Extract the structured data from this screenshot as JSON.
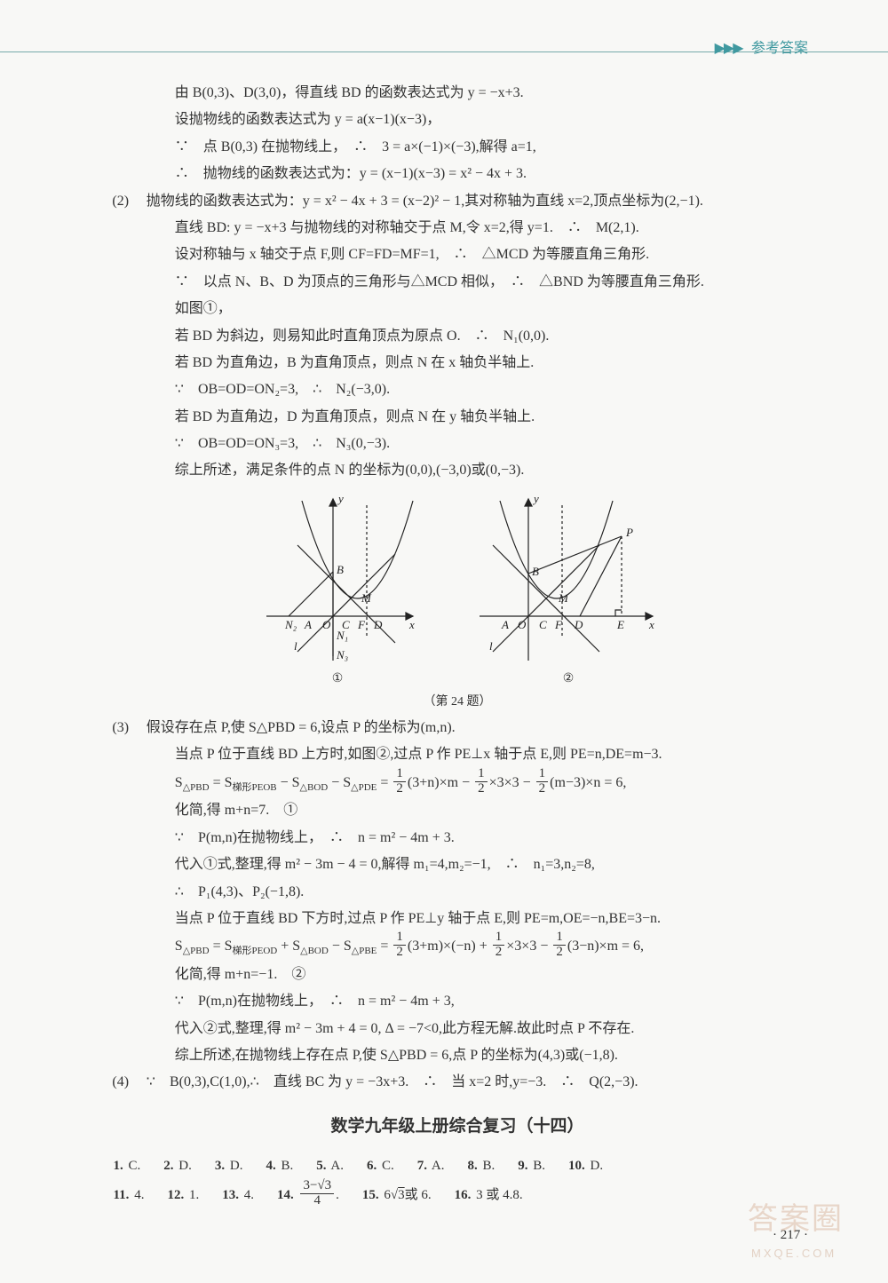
{
  "header": {
    "arrows": "▶▶▶",
    "label": "参考答案"
  },
  "body_lines": [
    {
      "cls": "line sub",
      "text": "由 B(0,3)、D(3,0)，得直线 BD 的函数表达式为 y = −x+3."
    },
    {
      "cls": "line sub",
      "text": "设抛物线的函数表达式为 y = a(x−1)(x−3)，"
    },
    {
      "cls": "line sub",
      "text": "∵　点 B(0,3) 在抛物线上，　∴　3 = a×(−1)×(−3),解得 a=1,"
    },
    {
      "cls": "line sub",
      "text": "∴　抛物线的函数表达式为：y = (x−1)(x−3) = x² − 4x + 3."
    },
    {
      "cls": "line",
      "label": "(2)",
      "text": "抛物线的函数表达式为：y = x² − 4x + 3 = (x−2)² − 1,其对称轴为直线 x=2,顶点坐标为(2,−1)."
    },
    {
      "cls": "line sub",
      "text": "直线 BD: y = −x+3 与抛物线的对称轴交于点 M,令 x=2,得 y=1.　∴　M(2,1)."
    },
    {
      "cls": "line sub",
      "text": "设对称轴与 x 轴交于点 F,则 CF=FD=MF=1,　∴　△MCD 为等腰直角三角形."
    },
    {
      "cls": "line sub",
      "text": "∵　以点 N、B、D 为顶点的三角形与△MCD 相似，　∴　△BND 为等腰直角三角形."
    },
    {
      "cls": "line sub",
      "text": "如图①，"
    },
    {
      "cls": "line sub",
      "text": "若 BD 为斜边，则易知此时直角顶点为原点 O.　∴　N₁(0,0)."
    },
    {
      "cls": "line sub",
      "text": "若 BD 为直角边，B 为直角顶点，则点 N 在 x 轴负半轴上."
    },
    {
      "cls": "line sub",
      "text": "∵　OB=OD=ON₂=3,　∴　N₂(−3,0)."
    },
    {
      "cls": "line sub",
      "text": "若 BD 为直角边，D 为直角顶点，则点 N 在 y 轴负半轴上."
    },
    {
      "cls": "line sub",
      "text": "∵　OB=OD=ON₃=3,　∴　N₃(0,−3)."
    },
    {
      "cls": "line sub",
      "text": "综上所述，满足条件的点 N 的坐标为(0,0),(−3,0)或(0,−3)."
    }
  ],
  "diagram_caption": "（第 24 题）",
  "diagram_labels": {
    "left": "①",
    "right": "②"
  },
  "svg_style": {
    "stroke": "#222",
    "fill": "none",
    "stroke_width": 1.2,
    "font": "italic 13px Times New Roman",
    "font_n": "13px Times New Roman"
  },
  "body_lines2": [
    {
      "cls": "line",
      "label": "(3)",
      "text": "假设存在点 P,使 S△PBD = 6,设点 P 的坐标为(m,n)."
    },
    {
      "cls": "line sub",
      "text": "当点 P 位于直线 BD 上方时,如图②,过点 P 作 PE⊥x 轴于点 E,则 PE=n,DE=m−3."
    },
    {
      "cls": "line sub",
      "html": "S<sub>△PBD</sub> = S<sub>梯形PEOB</sub> − S<sub>△BOD</sub> − S<sub>△PDE</sub> = <span class='frac'><span class='n'>1</span><span class='d'>2</span></span>(3+n)×m − <span class='frac'><span class='n'>1</span><span class='d'>2</span></span>×3×3 − <span class='frac'><span class='n'>1</span><span class='d'>2</span></span>(m−3)×n = 6,"
    },
    {
      "cls": "line sub",
      "text": "化简,得 m+n=7.　①"
    },
    {
      "cls": "line sub",
      "text": "∵　P(m,n)在抛物线上，　∴　n = m² − 4m + 3."
    },
    {
      "cls": "line sub",
      "text": "代入①式,整理,得 m² − 3m − 4 = 0,解得 m₁=4,m₂=−1,　∴　n₁=3,n₂=8,"
    },
    {
      "cls": "line sub",
      "text": "∴　P₁(4,3)、P₂(−1,8)."
    },
    {
      "cls": "line sub",
      "text": "当点 P 位于直线 BD 下方时,过点 P 作 PE⊥y 轴于点 E,则 PE=m,OE=−n,BE=3−n."
    },
    {
      "cls": "line sub",
      "html": "S<sub>△PBD</sub> = S<sub>梯形PEOD</sub> + S<sub>△BOD</sub> − S<sub>△PBE</sub> = <span class='frac'><span class='n'>1</span><span class='d'>2</span></span>(3+m)×(−n) + <span class='frac'><span class='n'>1</span><span class='d'>2</span></span>×3×3 − <span class='frac'><span class='n'>1</span><span class='d'>2</span></span>(3−n)×m = 6,"
    },
    {
      "cls": "line sub",
      "text": "化简,得 m+n=−1.　②"
    },
    {
      "cls": "line sub",
      "text": "∵　P(m,n)在抛物线上，　∴　n = m² − 4m + 3,"
    },
    {
      "cls": "line sub",
      "text": "代入②式,整理,得 m² − 3m + 4 = 0, Δ = −7<0,此方程无解.故此时点 P 不存在."
    },
    {
      "cls": "line sub",
      "text": "综上所述,在抛物线上存在点 P,使 S△PBD = 6,点 P 的坐标为(4,3)或(−1,8)."
    },
    {
      "cls": "line",
      "label": "(4)",
      "text": "∵　B(0,3),C(1,0),∴　直线 BC 为 y = −3x+3.　∴　当 x=2 时,y=−3.　∴　Q(2,−3)."
    }
  ],
  "section_title": "数学九年级上册综合复习（十四）",
  "answers_row1": [
    {
      "n": "1.",
      "v": "C."
    },
    {
      "n": "2.",
      "v": "D."
    },
    {
      "n": "3.",
      "v": "D."
    },
    {
      "n": "4.",
      "v": "B."
    },
    {
      "n": "5.",
      "v": "A."
    },
    {
      "n": "6.",
      "v": "C."
    },
    {
      "n": "7.",
      "v": "A."
    },
    {
      "n": "8.",
      "v": "B."
    },
    {
      "n": "9.",
      "v": "B."
    },
    {
      "n": "10.",
      "v": "D."
    }
  ],
  "answers_row2": [
    {
      "n": "11.",
      "v": "4."
    },
    {
      "n": "12.",
      "v": "1."
    },
    {
      "n": "13.",
      "v": "4."
    },
    {
      "n": "14.",
      "html": "<span class='frac'><span class='n'>3−√3</span><span class='d'>4</span></span>."
    },
    {
      "n": "15.",
      "html": "6<span class='mathn'>√<span class='sqrt'>3</span></span>或 6."
    },
    {
      "n": "16.",
      "v": "3 或 4.8."
    }
  ],
  "page_number": "· 217 ·",
  "watermark": {
    "line1": "答案圈",
    "line2": "MXQE.COM"
  }
}
